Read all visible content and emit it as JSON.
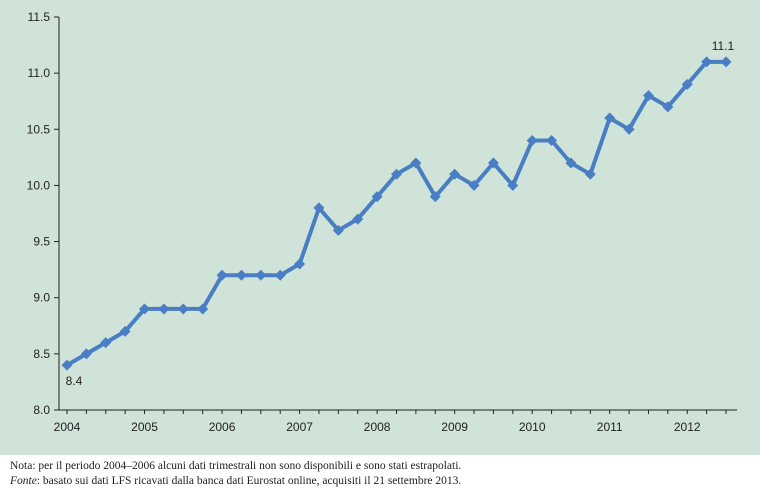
{
  "colors": {
    "plot_background": "#cfe3d8",
    "line": "#4a7ec4",
    "axis": "#222222"
  },
  "chart_data": {
    "type": "line",
    "title": "",
    "xlabel": "",
    "ylabel": "",
    "ylim": [
      8.0,
      11.5
    ],
    "yticks": [
      "8.0",
      "8.5",
      "9.0",
      "9.5",
      "10.0",
      "10.5",
      "11.0",
      "11.5"
    ],
    "xtick_labels": [
      "2004",
      "2005",
      "2006",
      "2007",
      "2008",
      "2009",
      "2010",
      "2011",
      "2012"
    ],
    "grid": false,
    "series": [
      {
        "values": [
          8.4,
          8.5,
          8.6,
          8.7,
          8.9,
          8.9,
          8.9,
          8.9,
          9.2,
          9.2,
          9.2,
          9.2,
          9.3,
          9.8,
          9.6,
          9.7,
          9.9,
          10.1,
          10.2,
          9.9,
          10.1,
          10.0,
          10.2,
          10.0,
          10.4,
          10.4,
          10.2,
          10.1,
          10.6,
          10.5,
          10.8,
          10.7,
          10.9,
          11.1,
          11.1
        ]
      }
    ],
    "annotations": [
      {
        "point_index": 0,
        "text": "8.4"
      },
      {
        "point_index": 34,
        "text": "11.1"
      }
    ]
  },
  "notes": {
    "line1": "Nota: per il periodo 2004–2006 alcuni dati trimestrali non sono disponibili e sono stati estrapolati.",
    "line2_label": "Fonte",
    "line2_text": ": basato sui dati LFS ricavati dalla banca dati Eurostat online, acquisiti il 21 settembre 2013."
  }
}
